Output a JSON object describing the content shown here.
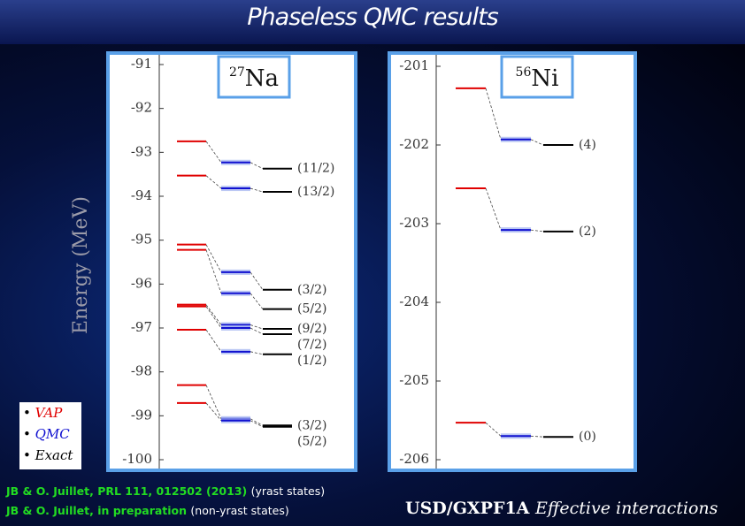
{
  "title": "Phaseless QMC results",
  "y_axis_label": "Energy (MeV)",
  "chart_data": [
    {
      "type": "level",
      "mass": "27",
      "symbol": "Na",
      "ylim": [
        -100,
        -91
      ],
      "yticks": [
        -91,
        -92,
        -93,
        -94,
        -95,
        -96,
        -97,
        -98,
        -99,
        -100
      ],
      "series": [
        {
          "name": "VAP",
          "color": "#e00000",
          "values": [
            -92.75,
            -93.53,
            -95.1,
            -95.22,
            -96.47,
            -96.51,
            -97.04,
            -98.3,
            -98.71
          ]
        },
        {
          "name": "QMC",
          "color": "#1010d0",
          "values": [
            -93.23,
            -93.82,
            -95.73,
            -96.21,
            -96.93,
            -97.0,
            -97.54,
            -99.07,
            -99.11
          ]
        },
        {
          "name": "Exact",
          "color": "#000000",
          "values": [
            -93.37,
            -93.9,
            -96.13,
            -96.57,
            -97.02,
            -97.14,
            -97.6,
            -99.22,
            -99.25
          ]
        }
      ],
      "level_labels": [
        "(11/2)",
        "(13/2)",
        "(3/2)",
        "(5/2)",
        "(9/2)",
        "(7/2)",
        "(1/2)",
        "(3/2)",
        "(5/2)"
      ]
    },
    {
      "type": "level",
      "mass": "56",
      "symbol": "Ni",
      "ylim": [
        -206,
        -201
      ],
      "yticks": [
        -201,
        -202,
        -203,
        -204,
        -205,
        -206
      ],
      "series": [
        {
          "name": "VAP",
          "color": "#e00000",
          "values": [
            -201.28,
            -202.55,
            -205.53
          ]
        },
        {
          "name": "QMC",
          "color": "#1010d0",
          "values": [
            -201.93,
            -203.08,
            -205.7
          ]
        },
        {
          "name": "Exact",
          "color": "#000000",
          "values": [
            -202.0,
            -203.1,
            -205.71
          ]
        }
      ],
      "level_labels": [
        "(4)",
        "(2)",
        "(0)"
      ]
    }
  ],
  "references": [
    {
      "text": "JB & O. Juillet, PRL 111, 012502 (2013)",
      "note": "(yrast states)"
    },
    {
      "text": "JB & O. Juillet, in preparation",
      "note": "(non-yrast states)"
    }
  ],
  "interaction": "USD/GXPF1A",
  "interaction_note": "Effective interactions"
}
